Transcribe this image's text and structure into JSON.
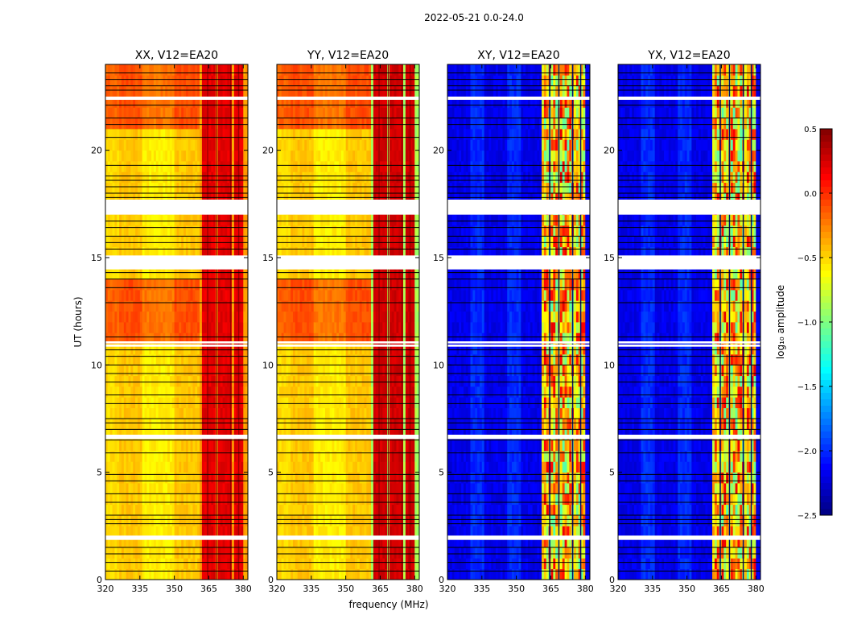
{
  "chart_data": {
    "type": "heatmap",
    "suptitle": "2022-05-21 0.0-24.0",
    "xlabel": "frequency (MHz)",
    "ylabel": "UT (hours)",
    "xlim": [
      320,
      382
    ],
    "ylim": [
      0,
      24
    ],
    "xticks": [
      320,
      335,
      350,
      365,
      380
    ],
    "yticks": [
      0,
      5,
      10,
      15,
      20
    ],
    "panels": [
      {
        "title": "XX, V12=EA20",
        "kind": "parallel",
        "stripe_low": 0.6,
        "stripe_high": 0.9
      },
      {
        "title": "YY, V12=EA20",
        "kind": "parallel",
        "stripe_low": 0.42,
        "stripe_high": 0.92
      },
      {
        "title": "XY, V12=EA20",
        "kind": "cross",
        "stripe_low": 0.5,
        "stripe_high": 0.85
      },
      {
        "title": "YX, V12=EA20",
        "kind": "cross",
        "stripe_low": 0.5,
        "stripe_high": 0.85
      }
    ],
    "bright_band_mhz": [
      361,
      380
    ],
    "bright_stripes_mhz": [
      [
        362,
        364.5
      ],
      [
        365.5,
        367.5
      ],
      [
        369,
        371.5
      ],
      [
        372.5,
        375
      ],
      [
        376.5,
        378
      ],
      [
        378.5,
        380
      ]
    ],
    "dark_lines_mhz": [
      364.5,
      368.5,
      374.5,
      378.0
    ],
    "flag_gaps_ut": [
      [
        17.0,
        17.7
      ],
      [
        14.45,
        15.1
      ],
      [
        10.85,
        10.95
      ],
      [
        6.55,
        6.75
      ],
      [
        1.85,
        2.05
      ],
      [
        22.35,
        22.5
      ],
      [
        11.0,
        11.1
      ]
    ],
    "flag_lines_ut": [
      23.6,
      23.3,
      23.0,
      22.8,
      22.1,
      21.5,
      21.2,
      20.6,
      19.3,
      18.8,
      18.6,
      18.3,
      18.0,
      17.8,
      16.7,
      16.4,
      16.0,
      15.7,
      15.4,
      14.7,
      14.3,
      14.0,
      13.6,
      12.9,
      11.3,
      10.7,
      10.4,
      10.0,
      9.6,
      9.2,
      8.6,
      8.2,
      7.5,
      7.3,
      7.0,
      6.5,
      5.9,
      4.9,
      4.6,
      4.0,
      3.6,
      3.0,
      2.8,
      2.6,
      1.5,
      1.2,
      0.8,
      0.4
    ],
    "rfi_blocks_ut": [
      [
        10.9,
        14.0
      ],
      [
        21.0,
        24.0
      ]
    ],
    "colorbar": {
      "label": "log₁₀ amplitude",
      "min": -2.5,
      "max": 0.5,
      "ticks": [
        0.5,
        0.0,
        -0.5,
        -1.0,
        -1.5,
        -2.0,
        -2.5
      ],
      "tick_labels": [
        "0.5",
        "0.0",
        "−0.5",
        "−1.0",
        "−1.5",
        "−2.0",
        "−2.5"
      ],
      "colormap": "jet"
    }
  }
}
